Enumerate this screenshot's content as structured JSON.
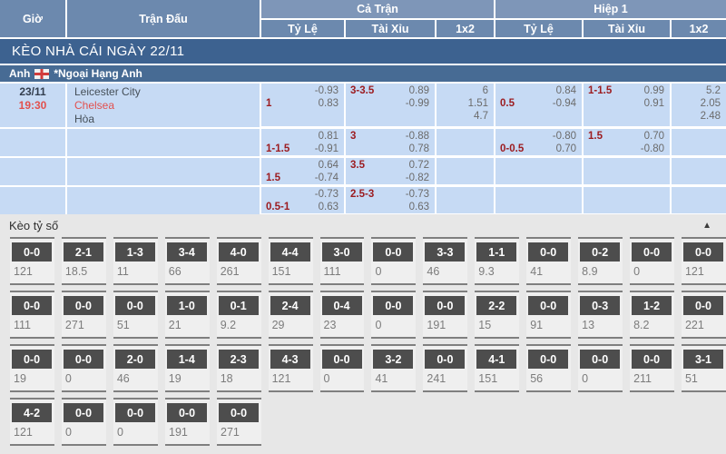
{
  "table": {
    "col_time": "Giờ",
    "col_match": "Trận Đấu",
    "col_full": "Cả Trận",
    "col_half": "Hiệp 1",
    "sub_cols": {
      "hdp": "Tỷ Lệ",
      "ou": "Tài Xỉu",
      "x12": "1x2"
    }
  },
  "section_bar": {
    "title": "KÈO NHÀ CÁI NGÀY 22/11"
  },
  "league_bar": {
    "country": "Anh",
    "flag_icon": "england-flag",
    "league": "*Ngoại Hạng Anh"
  },
  "match": {
    "date": "23/11",
    "time": "19:30",
    "home": "Leicester City",
    "away": "Chelsea",
    "draw": "Hòa"
  },
  "odds_rows": [
    {
      "ft_hdp": {
        "l1": "-0.93",
        "hcp": "1",
        "l2": "0.83"
      },
      "ft_ou": {
        "hcp": "3-3.5",
        "l1": "0.89",
        "l2": "-0.99"
      },
      "ft_1x2": [
        "6",
        "1.51",
        "4.7"
      ],
      "h1_hdp": {
        "l1": "0.84",
        "hcp": "0.5",
        "l2": "-0.94"
      },
      "h1_ou": {
        "hcp": "1-1.5",
        "l1": "0.99",
        "l2": "0.91"
      },
      "h1_1x2": [
        "5.2",
        "2.05",
        "2.48"
      ]
    },
    {
      "ft_hdp": {
        "l1": "0.81",
        "hcp": "1-1.5",
        "l2": "-0.91"
      },
      "ft_ou": {
        "hcp": "3",
        "l1": "-0.88",
        "l2": "0.78"
      },
      "ft_1x2": [],
      "h1_hdp": {
        "l1": "-0.80",
        "hcp": "0-0.5",
        "l2": "0.70"
      },
      "h1_ou": {
        "hcp": "1.5",
        "l1": "0.70",
        "l2": "-0.80"
      },
      "h1_1x2": []
    },
    {
      "ft_hdp": {
        "l1": "0.64",
        "hcp": "1.5",
        "l2": "-0.74"
      },
      "ft_ou": {
        "hcp": "3.5",
        "l1": "0.72",
        "l2": "-0.82"
      },
      "ft_1x2": [],
      "h1_hdp": null,
      "h1_ou": null,
      "h1_1x2": []
    },
    {
      "ft_hdp": {
        "l1": "-0.73",
        "hcp": "0.5-1",
        "l2": "0.63"
      },
      "ft_ou": {
        "hcp": "2.5-3",
        "l1": "-0.73",
        "l2": "0.63"
      },
      "ft_1x2": [],
      "h1_hdp": null,
      "h1_ou": null,
      "h1_1x2": []
    }
  ],
  "score_section": {
    "title": "Kèo tỷ số",
    "collapse_icon": "▲",
    "rows": [
      [
        {
          "score": "0-0",
          "odd": "121"
        },
        {
          "score": "2-1",
          "odd": "18.5"
        },
        {
          "score": "1-3",
          "odd": "11"
        },
        {
          "score": "3-4",
          "odd": "66"
        },
        {
          "score": "4-0",
          "odd": "261"
        },
        {
          "score": "4-4",
          "odd": "151"
        },
        {
          "score": "3-0",
          "odd": "111"
        },
        {
          "score": "0-0",
          "odd": "0"
        },
        {
          "score": "3-3",
          "odd": "46"
        },
        {
          "score": "1-1",
          "odd": "9.3"
        },
        {
          "score": "0-0",
          "odd": "41"
        },
        {
          "score": "0-2",
          "odd": "8.9"
        },
        {
          "score": "0-0",
          "odd": "0"
        },
        {
          "score": "0-0",
          "odd": "121"
        }
      ],
      [
        {
          "score": "0-0",
          "odd": "111"
        },
        {
          "score": "0-0",
          "odd": "271"
        },
        {
          "score": "0-0",
          "odd": "51"
        },
        {
          "score": "1-0",
          "odd": "21"
        },
        {
          "score": "0-1",
          "odd": "9.2"
        },
        {
          "score": "2-4",
          "odd": "29"
        },
        {
          "score": "0-4",
          "odd": "23"
        },
        {
          "score": "0-0",
          "odd": "0"
        },
        {
          "score": "0-0",
          "odd": "191"
        },
        {
          "score": "2-2",
          "odd": "15"
        },
        {
          "score": "0-0",
          "odd": "91"
        },
        {
          "score": "0-3",
          "odd": "13"
        },
        {
          "score": "1-2",
          "odd": "8.2"
        },
        {
          "score": "0-0",
          "odd": "221"
        }
      ],
      [
        {
          "score": "0-0",
          "odd": "19"
        },
        {
          "score": "0-0",
          "odd": "0"
        },
        {
          "score": "2-0",
          "odd": "46"
        },
        {
          "score": "1-4",
          "odd": "19"
        },
        {
          "score": "2-3",
          "odd": "18"
        },
        {
          "score": "4-3",
          "odd": "121"
        },
        {
          "score": "0-0",
          "odd": "0"
        },
        {
          "score": "3-2",
          "odd": "41"
        },
        {
          "score": "0-0",
          "odd": "241"
        },
        {
          "score": "4-1",
          "odd": "151"
        },
        {
          "score": "0-0",
          "odd": "56"
        },
        {
          "score": "0-0",
          "odd": "0"
        },
        {
          "score": "0-0",
          "odd": "211"
        },
        {
          "score": "3-1",
          "odd": "51"
        }
      ],
      [
        {
          "score": "4-2",
          "odd": "121"
        },
        {
          "score": "0-0",
          "odd": "0"
        },
        {
          "score": "0-0",
          "odd": "0"
        },
        {
          "score": "0-0",
          "odd": "191"
        },
        {
          "score": "0-0",
          "odd": "271"
        }
      ]
    ]
  },
  "colors": {
    "header_blue": "#6c89ae",
    "group_blue": "#7e96b8",
    "bar_navy": "#3d6290",
    "league_blue": "#476b94",
    "row_blue": "#c6daf4",
    "handicap_red": "#9c1c20",
    "team_red": "#e2504e",
    "odds_gray": "#6b6b6b",
    "score_box_gray": "#4d4d4d"
  }
}
